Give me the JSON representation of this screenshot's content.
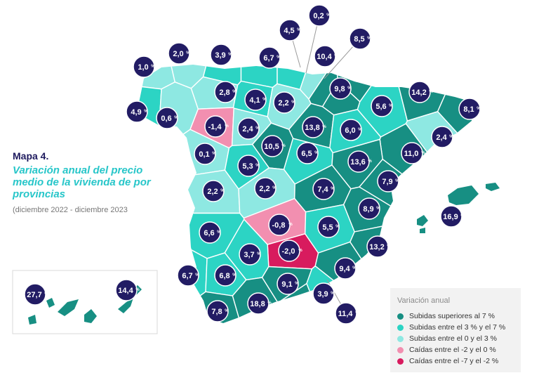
{
  "header": {
    "label": "Mapa 4.",
    "title": "Variación anual del precio medio de la vivienda de por provincias",
    "subtitle": "(diciembre 2022 - diciembre 2023"
  },
  "colors": {
    "cat_gt7": "#178f83",
    "cat_3_7": "#2cd4c4",
    "cat_0_3": "#8ee8e2",
    "cat_m2_0": "#f28fb0",
    "cat_m7_m2": "#d81b5e",
    "bubble": "#221c64",
    "border": "#ffffff"
  },
  "legend": {
    "title": "Variación anual",
    "items": [
      {
        "label": "Subidas superiores al 7 %",
        "color": "#178f83"
      },
      {
        "label": "Subidas entre el 3 % y el 7 %",
        "color": "#2cd4c4"
      },
      {
        "label": "Subidas entre el 0 y el 3 %",
        "color": "#8ee8e2"
      },
      {
        "label": "Caídas entre el -2 y el 0 %",
        "color": "#f28fb0"
      },
      {
        "label": "Caídas entre el -7 y el -2 %",
        "color": "#d81b5e"
      }
    ]
  },
  "chart_data": {
    "type": "choropleth",
    "unit": "%",
    "values": [
      {
        "value": "1,0",
        "color": "#8ee8e2"
      },
      {
        "value": "2,0",
        "color": "#8ee8e2"
      },
      {
        "value": "3,9",
        "color": "#2cd4c4"
      },
      {
        "value": "6,7",
        "color": "#2cd4c4"
      },
      {
        "value": "4,5",
        "color": "#2cd4c4"
      },
      {
        "value": "0,2",
        "color": "#8ee8e2"
      },
      {
        "value": "10,4",
        "color": "#178f83"
      },
      {
        "value": "8,5",
        "color": "#178f83"
      },
      {
        "value": "4,9",
        "color": "#2cd4c4"
      },
      {
        "value": "0,6",
        "color": "#8ee8e2"
      },
      {
        "value": "2,8",
        "color": "#8ee8e2"
      },
      {
        "value": "4,1",
        "color": "#2cd4c4"
      },
      {
        "value": "2,2",
        "color": "#8ee8e2"
      },
      {
        "value": "9,8",
        "color": "#178f83"
      },
      {
        "value": "5,6",
        "color": "#2cd4c4"
      },
      {
        "value": "14,2",
        "color": "#178f83"
      },
      {
        "value": "8,1",
        "color": "#178f83"
      },
      {
        "value": "-1,4",
        "color": "#f28fb0"
      },
      {
        "value": "2,4",
        "color": "#8ee8e2"
      },
      {
        "value": "13,8",
        "color": "#178f83"
      },
      {
        "value": "6,0",
        "color": "#2cd4c4"
      },
      {
        "value": "2,4",
        "color": "#8ee8e2"
      },
      {
        "value": "0,1",
        "color": "#8ee8e2"
      },
      {
        "value": "10,5",
        "color": "#178f83"
      },
      {
        "value": "6,5",
        "color": "#2cd4c4"
      },
      {
        "value": "11,0",
        "color": "#178f83"
      },
      {
        "value": "5,3",
        "color": "#2cd4c4"
      },
      {
        "value": "13,6",
        "color": "#178f83"
      },
      {
        "value": "2,2",
        "color": "#8ee8e2"
      },
      {
        "value": "2,2",
        "color": "#8ee8e2"
      },
      {
        "value": "7,4",
        "color": "#178f83"
      },
      {
        "value": "7,9",
        "color": "#178f83"
      },
      {
        "value": "8,9",
        "color": "#178f83"
      },
      {
        "value": "-0,8",
        "color": "#f28fb0"
      },
      {
        "value": "6,6",
        "color": "#2cd4c4"
      },
      {
        "value": "5,5",
        "color": "#2cd4c4"
      },
      {
        "value": "16,9",
        "color": "#178f83"
      },
      {
        "value": "-2,0",
        "color": "#d81b5e"
      },
      {
        "value": "13,2",
        "color": "#178f83"
      },
      {
        "value": "3,7",
        "color": "#2cd4c4"
      },
      {
        "value": "9,4",
        "color": "#178f83"
      },
      {
        "value": "27,7",
        "color": "#178f83"
      },
      {
        "value": "14,4",
        "color": "#178f83"
      },
      {
        "value": "6,7",
        "color": "#2cd4c4"
      },
      {
        "value": "6,8",
        "color": "#2cd4c4"
      },
      {
        "value": "9,1",
        "color": "#178f83"
      },
      {
        "value": "3,9",
        "color": "#2cd4c4"
      },
      {
        "value": "18,8",
        "color": "#178f83"
      },
      {
        "value": "7,8",
        "color": "#178f83"
      },
      {
        "value": "11,4",
        "color": "#178f83"
      }
    ]
  }
}
